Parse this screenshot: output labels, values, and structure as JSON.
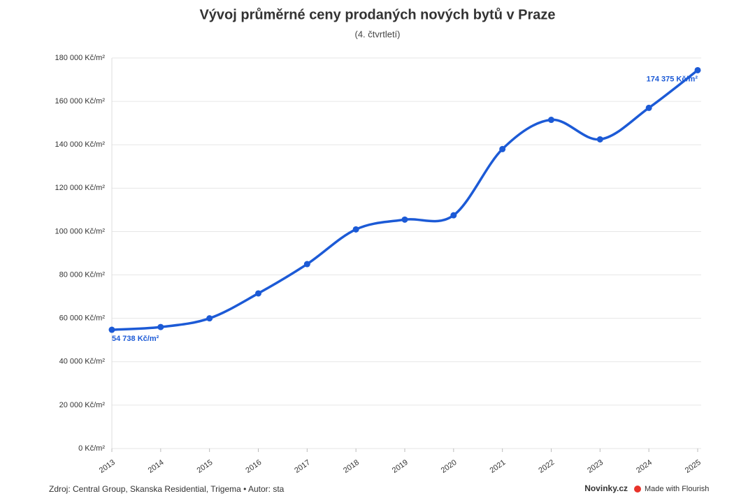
{
  "chart_data": {
    "type": "line",
    "title": "Vývoj průměrné ceny prodaných nových bytů v Praze",
    "subtitle": "(4. čtvrtletí)",
    "x": [
      2013,
      2014,
      2015,
      2016,
      2017,
      2018,
      2019,
      2020,
      2021,
      2022,
      2023,
      2024,
      2025
    ],
    "xlim": [
      2013,
      2025
    ],
    "xticks": [
      2013,
      2014,
      2015,
      2016,
      2017,
      2018,
      2019,
      2020,
      2021,
      2022,
      2023,
      2024,
      2025
    ],
    "series": [
      {
        "color": "#1c5ad6",
        "values": [
          54738,
          56000,
          60000,
          71500,
          85000,
          101000,
          105500,
          107500,
          138000,
          151500,
          142500,
          157000,
          174375
        ],
        "value_labels": [
          "54 738 Kč/m²",
          null,
          null,
          null,
          null,
          null,
          null,
          null,
          null,
          null,
          null,
          null,
          "174 375 Kč/m²"
        ]
      }
    ],
    "ylim": [
      0,
      180000
    ],
    "yticks": [
      {
        "value": 0,
        "label": "0 Kč/m²"
      },
      {
        "value": 20000,
        "label": "20 000 Kč/m²"
      },
      {
        "value": 40000,
        "label": "40 000 Kč/m²"
      },
      {
        "value": 60000,
        "label": "60 000 Kč/m²"
      },
      {
        "value": 80000,
        "label": "80 000 Kč/m²"
      },
      {
        "value": 100000,
        "label": "100 000 Kč/m²"
      },
      {
        "value": 120000,
        "label": "120 000 Kč/m²"
      },
      {
        "value": 140000,
        "label": "140 000 Kč/m²"
      },
      {
        "value": 160000,
        "label": "160 000 Kč/m²"
      },
      {
        "value": 180000,
        "label": "180 000 Kč/m²"
      }
    ],
    "grid": true,
    "source": "Zdroj: Central Group, Skanska Residential, Trigema • Autor: sta",
    "brand": "Novinky.cz",
    "credit": "Made with Flourish"
  }
}
